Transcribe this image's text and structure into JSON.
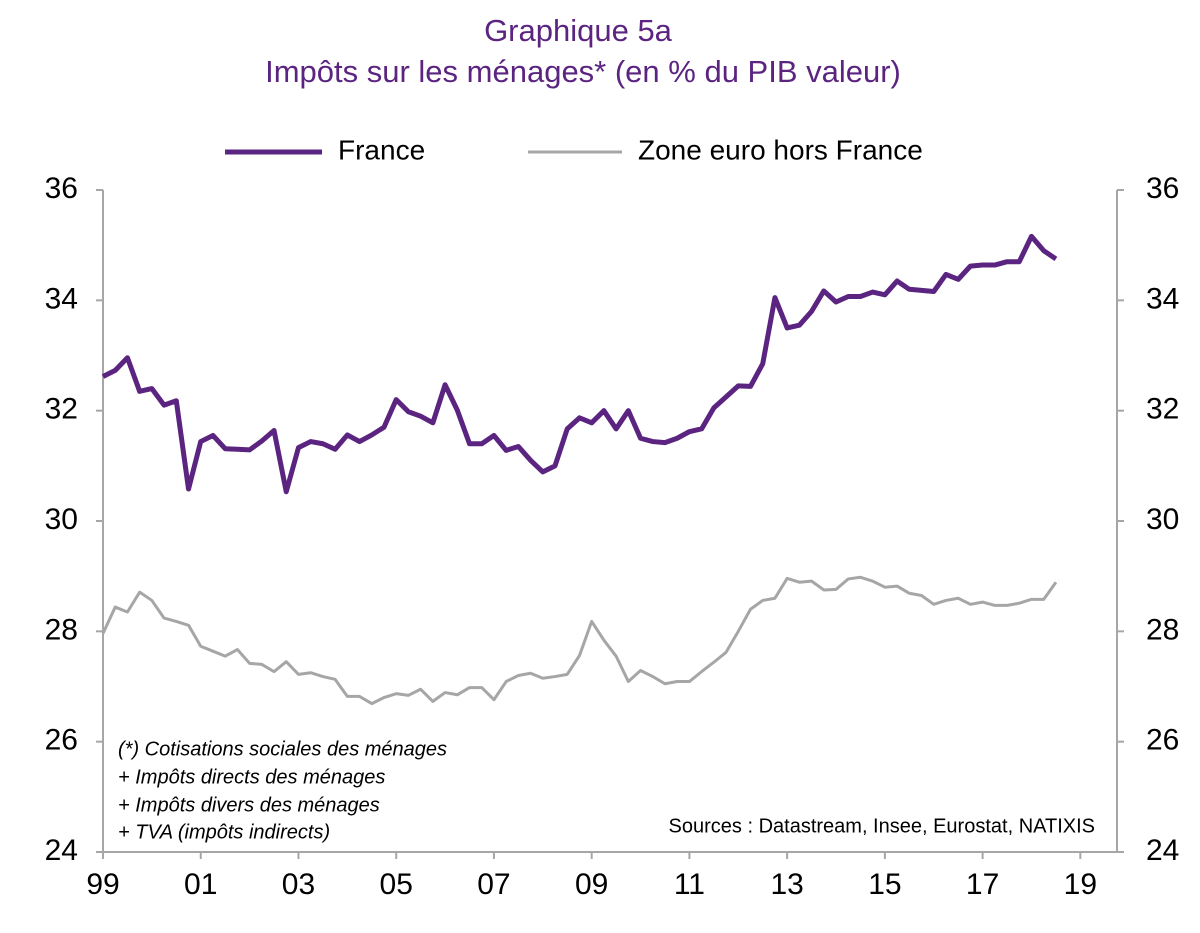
{
  "chart_data": {
    "type": "line",
    "title": "Graphique 5a",
    "subtitle": "Impôts sur les ménages* (en % du PIB valeur)",
    "annotations": [
      "(*) Cotisations sociales des ménages",
      "+ Impôts directs des ménages",
      "+ Impôts divers des ménages",
      "+ TVA (impôts indirects)"
    ],
    "source": "Sources : Datastream, Insee, Eurostat, NATIXIS",
    "x": [
      1999,
      1999.25,
      1999.5,
      1999.75,
      2000,
      2000.25,
      2000.5,
      2000.75,
      2001,
      2001.25,
      2001.5,
      2001.75,
      2002,
      2002.25,
      2002.5,
      2002.75,
      2003,
      2003.25,
      2003.5,
      2003.75,
      2004,
      2004.25,
      2004.5,
      2004.75,
      2005,
      2005.25,
      2005.5,
      2005.75,
      2006,
      2006.25,
      2006.5,
      2006.75,
      2007,
      2007.25,
      2007.5,
      2007.75,
      2008,
      2008.25,
      2008.5,
      2008.75,
      2009,
      2009.25,
      2009.5,
      2009.75,
      2010,
      2010.25,
      2010.5,
      2010.75,
      2011,
      2011.25,
      2011.5,
      2011.75,
      2012,
      2012.25,
      2012.5,
      2012.75,
      2013,
      2013.25,
      2013.5,
      2013.75,
      2014,
      2014.25,
      2014.5,
      2014.75,
      2015,
      2015.25,
      2015.5,
      2015.75,
      2016,
      2016.25,
      2016.5,
      2016.75,
      2017,
      2017.25,
      2017.5,
      2017.75,
      2018,
      2018.25,
      2018.5
    ],
    "series": [
      {
        "name": "France",
        "color": "#5b2480",
        "width": 5,
        "values": [
          32.62,
          32.73,
          32.96,
          32.35,
          32.4,
          32.1,
          32.18,
          30.58,
          31.44,
          31.55,
          31.31,
          31.3,
          31.29,
          31.45,
          31.64,
          30.53,
          31.33,
          31.44,
          31.4,
          31.3,
          31.56,
          31.44,
          31.56,
          31.7,
          32.2,
          31.98,
          31.9,
          31.78,
          32.47,
          32.01,
          31.4,
          31.4,
          31.55,
          31.28,
          31.35,
          31.1,
          30.89,
          31.0,
          31.67,
          31.87,
          31.78,
          32.0,
          31.67,
          32.0,
          31.5,
          31.44,
          31.42,
          31.5,
          31.62,
          31.67,
          32.05,
          32.25,
          32.45,
          32.44,
          32.85,
          34.05,
          33.5,
          33.55,
          33.8,
          34.17,
          33.97,
          34.07,
          34.07,
          34.15,
          34.1,
          34.35,
          34.2,
          34.18,
          34.16,
          34.47,
          34.38,
          34.62,
          34.64,
          34.64,
          34.7,
          34.7,
          35.16,
          34.9,
          34.75
        ]
      },
      {
        "name": "Zone euro hors France",
        "color": "#a6a6a6",
        "width": 3,
        "values": [
          27.96,
          28.44,
          28.35,
          28.71,
          28.56,
          28.24,
          28.18,
          28.11,
          27.73,
          27.64,
          27.55,
          27.67,
          27.42,
          27.4,
          27.27,
          27.45,
          27.22,
          27.25,
          27.18,
          27.13,
          26.82,
          26.82,
          26.69,
          26.8,
          26.87,
          26.84,
          26.95,
          26.73,
          26.89,
          26.85,
          26.98,
          26.98,
          26.76,
          27.09,
          27.2,
          27.24,
          27.15,
          27.18,
          27.22,
          27.56,
          28.18,
          27.84,
          27.55,
          27.09,
          27.29,
          27.18,
          27.05,
          27.09,
          27.09,
          27.27,
          27.44,
          27.62,
          28.0,
          28.4,
          28.56,
          28.6,
          28.96,
          28.89,
          28.91,
          28.75,
          28.76,
          28.95,
          28.98,
          28.91,
          28.8,
          28.82,
          28.69,
          28.65,
          28.49,
          28.56,
          28.6,
          28.49,
          28.53,
          28.47,
          28.47,
          28.51,
          28.58,
          28.58,
          28.89
        ]
      }
    ],
    "xlim": [
      1999,
      2019.75
    ],
    "xticks": [
      {
        "value": 1999,
        "label": "99"
      },
      {
        "value": 2001,
        "label": "01"
      },
      {
        "value": 2003,
        "label": "03"
      },
      {
        "value": 2005,
        "label": "05"
      },
      {
        "value": 2007,
        "label": "07"
      },
      {
        "value": 2009,
        "label": "09"
      },
      {
        "value": 2011,
        "label": "11"
      },
      {
        "value": 2013,
        "label": "13"
      },
      {
        "value": 2015,
        "label": "15"
      },
      {
        "value": 2017,
        "label": "17"
      },
      {
        "value": 2019,
        "label": "19"
      }
    ],
    "ylim": [
      24,
      36
    ],
    "yticks": [
      24,
      26,
      28,
      30,
      32,
      34,
      36
    ],
    "y2lim": [
      24,
      36
    ],
    "y2ticks": [
      24,
      26,
      28,
      30,
      32,
      34,
      36
    ],
    "grid": false,
    "legend": "top"
  }
}
